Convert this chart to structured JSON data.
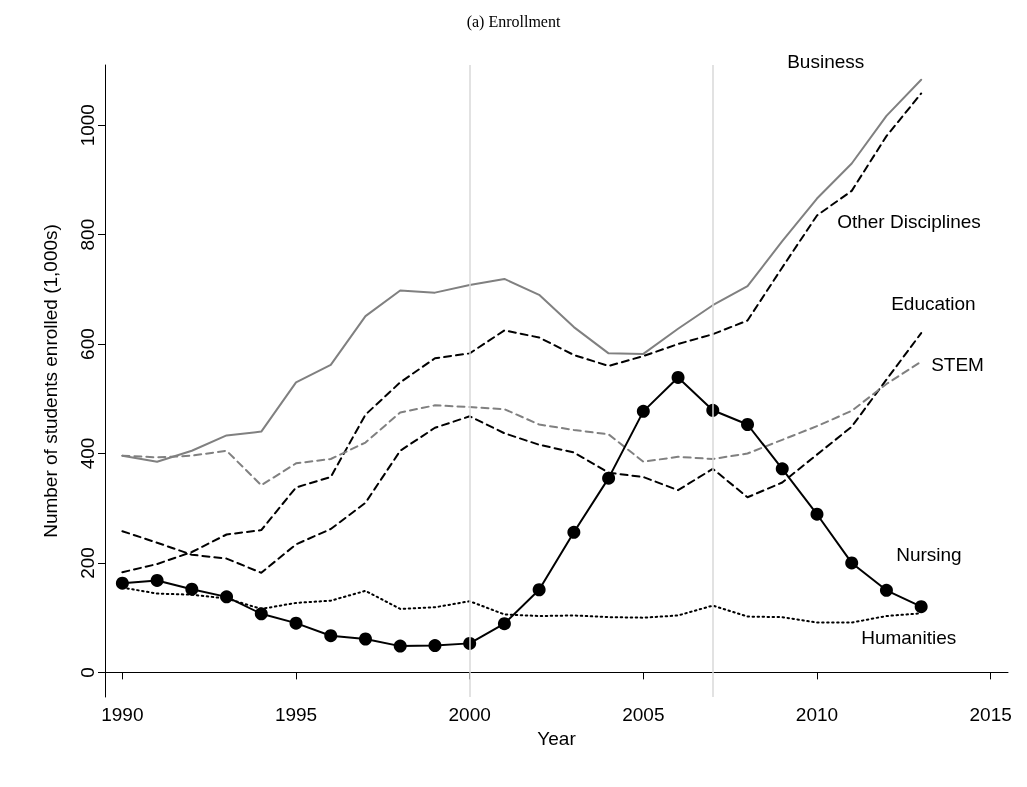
{
  "chart_data": {
    "type": "line",
    "title": "(a) Enrollment",
    "xlabel": "Year",
    "ylabel": "Number of students enrolled (1,000s)",
    "x": [
      1990,
      1991,
      1992,
      1993,
      1994,
      1995,
      1996,
      1997,
      1998,
      1999,
      2000,
      2001,
      2002,
      2003,
      2004,
      2005,
      2006,
      2007,
      2008,
      2009,
      2010,
      2011,
      2012,
      2013
    ],
    "series": [
      {
        "name": "Business",
        "color": "#808080",
        "line_style": "solid",
        "marker": "none",
        "values": [
          396,
          385,
          405,
          433,
          440,
          530,
          562,
          651,
          698,
          694,
          708,
          719,
          690,
          631,
          583,
          582,
          628,
          671,
          706,
          788,
          866,
          930,
          1017,
          1083
        ]
      },
      {
        "name": "Other Disciplines",
        "color": "#000000",
        "line_style": "dashed",
        "marker": "none",
        "values": [
          183,
          198,
          220,
          252,
          260,
          338,
          357,
          471,
          530,
          574,
          583,
          625,
          612,
          580,
          560,
          578,
          600,
          618,
          643,
          740,
          835,
          880,
          980,
          1058
        ]
      },
      {
        "name": "Education",
        "color": "#000000",
        "line_style": "dashed",
        "marker": "none",
        "values": [
          258,
          237,
          215,
          208,
          182,
          234,
          262,
          310,
          405,
          447,
          468,
          437,
          416,
          402,
          365,
          357,
          333,
          372,
          320,
          347,
          398,
          449,
          535,
          620
        ]
      },
      {
        "name": "STEM",
        "color": "#808080",
        "line_style": "dashed",
        "marker": "none",
        "values": [
          396,
          393,
          396,
          405,
          342,
          382,
          390,
          420,
          475,
          488,
          485,
          481,
          453,
          443,
          435,
          385,
          394,
          390,
          400,
          425,
          450,
          478,
          527,
          568
        ]
      },
      {
        "name": "Nursing",
        "color": "#000000",
        "line_style": "solid",
        "marker": "circle",
        "values": [
          163,
          168,
          152,
          138,
          107,
          90,
          67,
          61,
          48,
          49,
          53,
          89,
          151,
          256,
          355,
          477,
          539,
          479,
          453,
          372,
          289,
          200,
          150,
          120
        ]
      },
      {
        "name": "Humanities",
        "color": "#000000",
        "line_style": "dotted",
        "marker": "none",
        "values": [
          155,
          144,
          142,
          135,
          116,
          127,
          131,
          149,
          116,
          119,
          130,
          106,
          103,
          104,
          101,
          100,
          104,
          122,
          102,
          101,
          91,
          91,
          103,
          108
        ]
      }
    ],
    "xlim": [
      1989.5,
      2015.5
    ],
    "xticks": [
      1990,
      1995,
      2000,
      2005,
      2010,
      2015
    ],
    "ylim": [
      -45,
      1110
    ],
    "yticks": [
      0,
      200,
      400,
      600,
      800,
      1000
    ],
    "ref_lines": [
      {
        "axis": "x",
        "value": 2000,
        "color": "#d9d9d9"
      },
      {
        "axis": "x",
        "value": 2007,
        "color": "#d9d9d9"
      }
    ],
    "grid": false,
    "legend": false
  }
}
